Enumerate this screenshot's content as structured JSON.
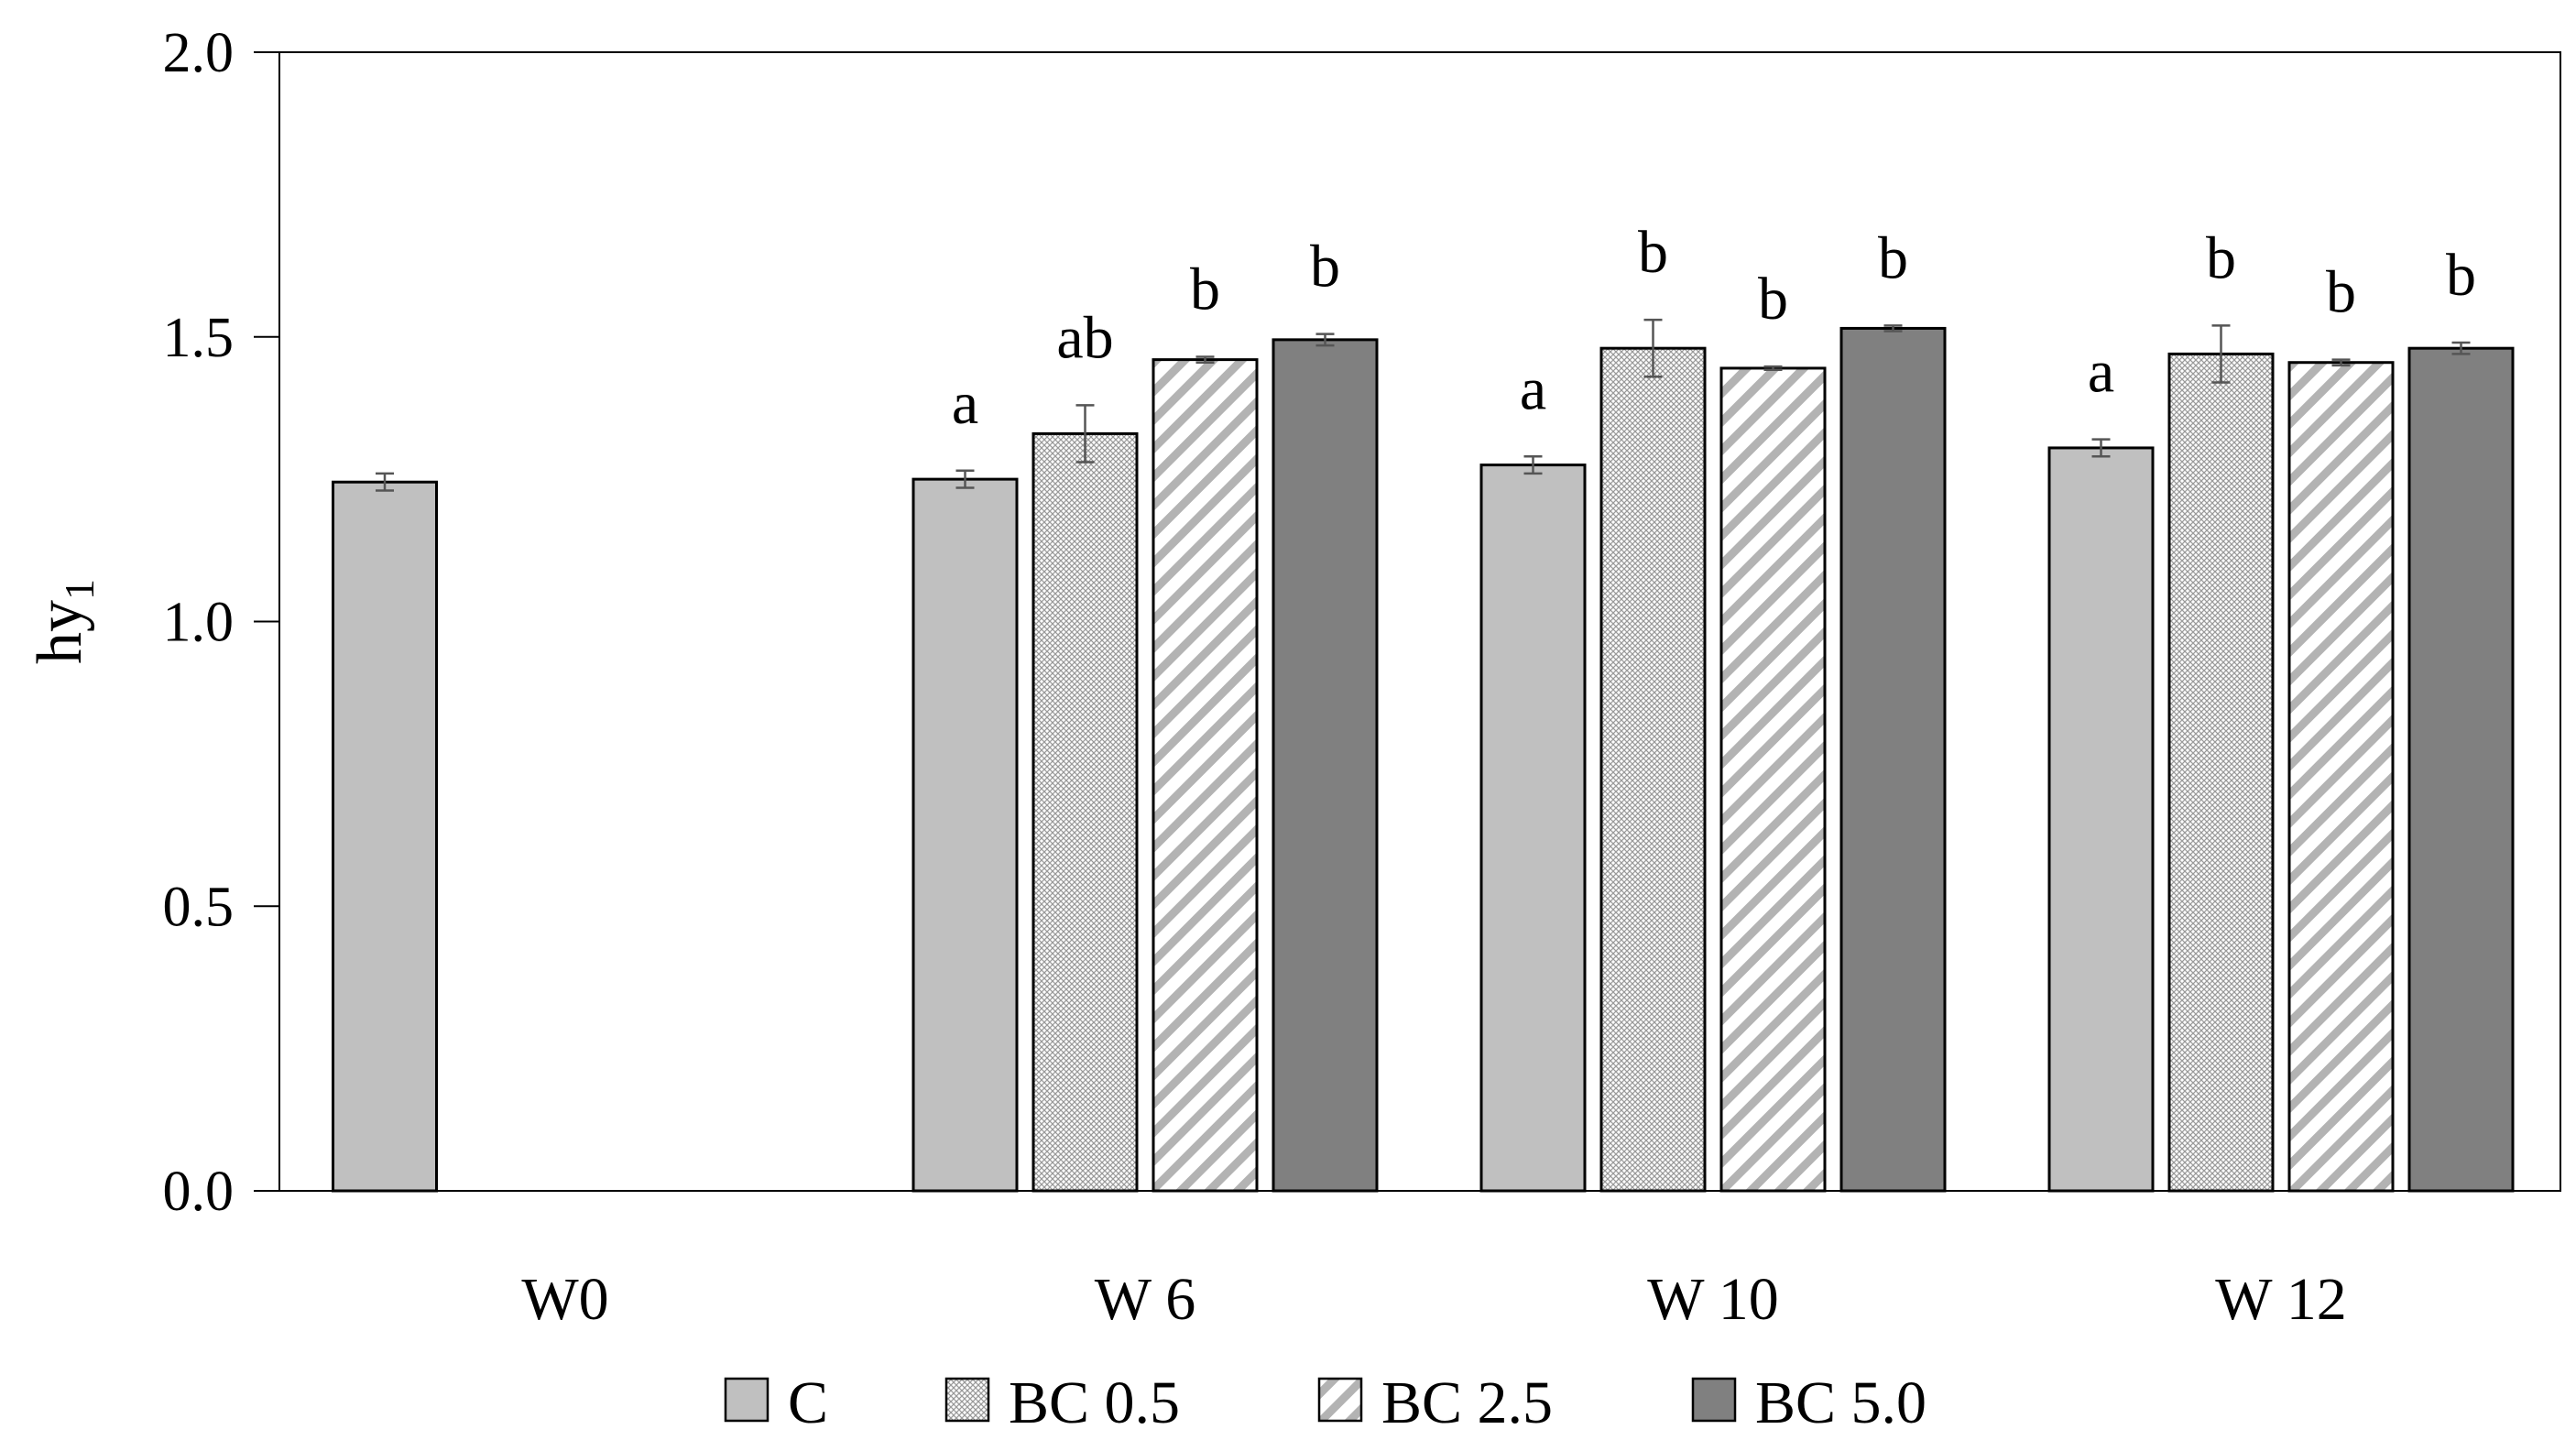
{
  "chart_data": {
    "type": "bar",
    "title": "",
    "xlabel": "",
    "ylabel": "hy",
    "ylabel_subscript": "1",
    "ylim": [
      0,
      2.0
    ],
    "yticks": [
      0.0,
      0.5,
      1.0,
      1.5,
      2.0
    ],
    "ytick_labels": [
      "0.0",
      "0.5",
      "1.0",
      "1.5",
      "2.0"
    ],
    "grid": false,
    "legend_position": "bottom",
    "categories": [
      "W0",
      "W 6",
      "W 10",
      "W 12"
    ],
    "series": [
      {
        "name": "C",
        "pattern": "solid-light",
        "color": "#c0c0c0",
        "values": [
          1.245,
          1.25,
          1.275,
          1.305
        ],
        "errors": [
          0.015,
          0.015,
          0.015,
          0.015
        ],
        "letters": [
          "",
          "a",
          "a",
          "a"
        ]
      },
      {
        "name": "BC 0.5",
        "pattern": "fine-crosshatch",
        "color": "#ffffff",
        "values": [
          null,
          1.33,
          1.48,
          1.47
        ],
        "errors": [
          null,
          0.05,
          0.05,
          0.05
        ],
        "letters": [
          "",
          "ab",
          "b",
          "b"
        ]
      },
      {
        "name": "BC 2.5",
        "pattern": "diagonal-stripes",
        "color": "#ffffff",
        "values": [
          null,
          1.46,
          1.445,
          1.455
        ],
        "errors": [
          null,
          0.005,
          0.003,
          0.005
        ],
        "letters": [
          "",
          "b",
          "b",
          "b"
        ]
      },
      {
        "name": "BC 5.0",
        "pattern": "solid-dark",
        "color": "#808080",
        "values": [
          null,
          1.495,
          1.515,
          1.48
        ],
        "errors": [
          null,
          0.01,
          0.005,
          0.01
        ],
        "letters": [
          "",
          "b",
          "b",
          "b"
        ]
      }
    ]
  }
}
